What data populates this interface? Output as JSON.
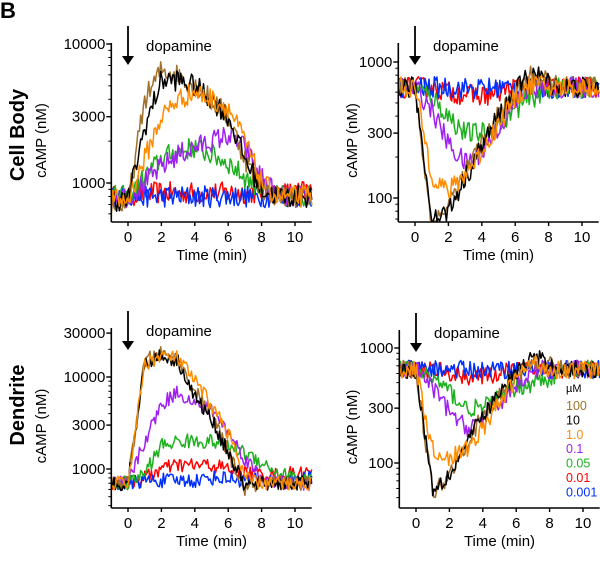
{
  "figure_label": "B",
  "row_labels": [
    "Cell Body",
    "Dendrite"
  ],
  "legend": {
    "unit": "µM",
    "entries": [
      {
        "label": "100",
        "color": "#a0702a"
      },
      {
        "label": "10",
        "color": "#000000"
      },
      {
        "label": "1.0",
        "color": "#ff8c00"
      },
      {
        "label": "0.1",
        "color": "#a020f0"
      },
      {
        "label": "0.05",
        "color": "#1fb01f"
      },
      {
        "label": "0.01",
        "color": "#ff0000"
      },
      {
        "label": "0.001",
        "color": "#0030ff"
      }
    ]
  },
  "chart_data": [
    {
      "type": "line",
      "id": "cellbody-increase",
      "row": "Cell Body",
      "xlabel": "Time (min)",
      "ylabel": "cAMP (nM)",
      "annotation": "dopamine",
      "annotation_x": 0,
      "xlim": [
        -1,
        11
      ],
      "xticks": [
        0,
        2,
        4,
        6,
        8,
        10
      ],
      "yscale": "log",
      "ylim": [
        525,
        10000
      ],
      "yticks": [
        1000,
        3000,
        10000
      ],
      "yticklabels": [
        "1000",
        "3000",
        "10000"
      ],
      "x": [
        -1,
        0,
        1,
        2,
        3,
        4,
        5,
        6,
        7,
        8,
        9,
        10,
        11
      ],
      "series": [
        {
          "name": "100",
          "values": [
            700,
            700,
            4000,
            6500,
            6000,
            5000,
            4000,
            3000,
            1500,
            900,
            800,
            800,
            800
          ]
        },
        {
          "name": "10",
          "values": [
            750,
            750,
            2500,
            5500,
            5500,
            5000,
            4000,
            3000,
            1500,
            900,
            800,
            800,
            800
          ]
        },
        {
          "name": "1.0",
          "values": [
            750,
            750,
            1500,
            3000,
            4000,
            4500,
            4000,
            3500,
            2000,
            1000,
            800,
            800,
            800
          ]
        },
        {
          "name": "0.1",
          "values": [
            800,
            800,
            1000,
            1300,
            1600,
            1800,
            2000,
            2200,
            1800,
            1100,
            800,
            800,
            800
          ]
        },
        {
          "name": "0.05",
          "values": [
            800,
            800,
            1100,
            1500,
            1700,
            1800,
            1600,
            1400,
            1100,
            900,
            800,
            800,
            800
          ]
        },
        {
          "name": "0.01",
          "values": [
            800,
            800,
            850,
            850,
            850,
            850,
            850,
            850,
            850,
            850,
            850,
            850,
            900
          ]
        },
        {
          "name": "0.001",
          "values": [
            800,
            800,
            800,
            800,
            800,
            800,
            800,
            800,
            800,
            800,
            800,
            800,
            800
          ]
        }
      ]
    },
    {
      "type": "line",
      "id": "cellbody-decrease",
      "row": "Cell Body",
      "xlabel": "Time (min)",
      "ylabel": "cAMP (nM)",
      "annotation": "dopamine",
      "annotation_x": 0,
      "xlim": [
        -1,
        11
      ],
      "xticks": [
        0,
        2,
        4,
        6,
        8,
        10
      ],
      "yscale": "log",
      "ylim": [
        67,
        1400
      ],
      "yticks": [
        100,
        300,
        1000
      ],
      "yticklabels": [
        "100",
        "300",
        "1000"
      ],
      "x": [
        -1,
        0,
        1,
        2,
        3,
        4,
        5,
        6,
        7,
        8,
        9,
        10,
        11
      ],
      "series": [
        {
          "name": "100",
          "values": [
            650,
            650,
            60,
            90,
            150,
            250,
            400,
            600,
            800,
            700,
            650,
            650,
            650
          ]
        },
        {
          "name": "10",
          "values": [
            650,
            650,
            70,
            80,
            140,
            240,
            400,
            600,
            850,
            700,
            650,
            650,
            650
          ]
        },
        {
          "name": "1.0",
          "values": [
            650,
            650,
            150,
            110,
            150,
            220,
            350,
            550,
            700,
            650,
            650,
            650,
            650
          ]
        },
        {
          "name": "0.1",
          "values": [
            650,
            650,
            450,
            250,
            180,
            220,
            330,
            500,
            650,
            650,
            650,
            650,
            650
          ]
        },
        {
          "name": "0.05",
          "values": [
            650,
            650,
            550,
            400,
            300,
            300,
            350,
            450,
            550,
            620,
            650,
            650,
            650
          ]
        },
        {
          "name": "0.01",
          "values": [
            650,
            650,
            650,
            600,
            580,
            560,
            600,
            650,
            650,
            650,
            650,
            650,
            650
          ]
        },
        {
          "name": "0.001",
          "values": [
            650,
            650,
            650,
            650,
            640,
            640,
            650,
            650,
            650,
            650,
            650,
            650,
            650
          ]
        }
      ]
    },
    {
      "type": "line",
      "id": "dendrite-increase",
      "row": "Dendrite",
      "xlabel": "Time (min)",
      "ylabel": "cAMP (nM)",
      "annotation": "dopamine",
      "annotation_x": 0,
      "xlim": [
        -1,
        11
      ],
      "xticks": [
        0,
        2,
        4,
        6,
        8,
        10
      ],
      "yscale": "log",
      "ylim": [
        377,
        30000
      ],
      "yticks": [
        1000,
        3000,
        10000,
        30000
      ],
      "yticklabels": [
        "1000",
        "3000",
        "10000",
        "30000"
      ],
      "x": [
        -1,
        0,
        1,
        2,
        3,
        4,
        5,
        6,
        7,
        8,
        9,
        10,
        11
      ],
      "series": [
        {
          "name": "100",
          "values": [
            700,
            700,
            15000,
            18000,
            15000,
            7000,
            4000,
            1500,
            600,
            700,
            700,
            700,
            700
          ]
        },
        {
          "name": "10",
          "values": [
            700,
            700,
            14000,
            17000,
            15000,
            6000,
            3500,
            1500,
            650,
            700,
            700,
            700,
            700
          ]
        },
        {
          "name": "1.0",
          "values": [
            700,
            700,
            14000,
            17000,
            16000,
            9000,
            5000,
            2500,
            800,
            700,
            700,
            700,
            700
          ]
        },
        {
          "name": "0.1",
          "values": [
            700,
            700,
            2000,
            5000,
            7000,
            5000,
            4500,
            2500,
            1300,
            800,
            700,
            700,
            700
          ]
        },
        {
          "name": "0.05",
          "values": [
            700,
            700,
            900,
            1800,
            2000,
            2000,
            2000,
            1800,
            1500,
            1200,
            900,
            800,
            800
          ]
        },
        {
          "name": "0.01",
          "values": [
            700,
            700,
            800,
            1000,
            1100,
            1100,
            1100,
            1000,
            900,
            900,
            850,
            900,
            900
          ]
        },
        {
          "name": "0.001",
          "values": [
            700,
            700,
            750,
            750,
            750,
            750,
            800,
            800,
            750,
            750,
            750,
            750,
            800
          ]
        }
      ]
    },
    {
      "type": "line",
      "id": "dendrite-decrease",
      "row": "Dendrite",
      "xlabel": "Time (min)",
      "ylabel": "cAMP (nM)",
      "annotation": "dopamine",
      "annotation_x": 0,
      "xlim": [
        -1,
        11
      ],
      "xticks": [
        0,
        2,
        4,
        6,
        8,
        10
      ],
      "yscale": "log",
      "ylim": [
        41,
        1430
      ],
      "yticks": [
        100,
        300,
        1000
      ],
      "yticklabels": [
        "100",
        "300",
        "1000"
      ],
      "x": [
        -1,
        0,
        1,
        2,
        3,
        4,
        5,
        6,
        7,
        8,
        9,
        10,
        11
      ],
      "series": [
        {
          "name": "100",
          "values": [
            650,
            650,
            55,
            80,
            150,
            250,
            400,
            600,
            750,
            700,
            650,
            650,
            650
          ]
        },
        {
          "name": "10",
          "values": [
            650,
            650,
            60,
            80,
            150,
            250,
            400,
            600,
            850,
            700,
            650,
            650,
            650
          ]
        },
        {
          "name": "1.0",
          "values": [
            650,
            650,
            130,
            110,
            130,
            200,
            330,
            550,
            750,
            650,
            650,
            650,
            650
          ]
        },
        {
          "name": "0.1",
          "values": [
            650,
            650,
            450,
            280,
            200,
            250,
            330,
            480,
            650,
            650,
            650,
            650,
            650
          ]
        },
        {
          "name": "0.05",
          "values": [
            650,
            650,
            550,
            420,
            300,
            300,
            370,
            450,
            500,
            550,
            650,
            650,
            650
          ]
        },
        {
          "name": "0.01",
          "values": [
            650,
            650,
            650,
            600,
            570,
            560,
            600,
            650,
            650,
            650,
            650,
            650,
            650
          ]
        },
        {
          "name": "0.001",
          "values": [
            650,
            650,
            650,
            650,
            650,
            640,
            650,
            650,
            650,
            650,
            650,
            650,
            650
          ]
        }
      ]
    }
  ]
}
